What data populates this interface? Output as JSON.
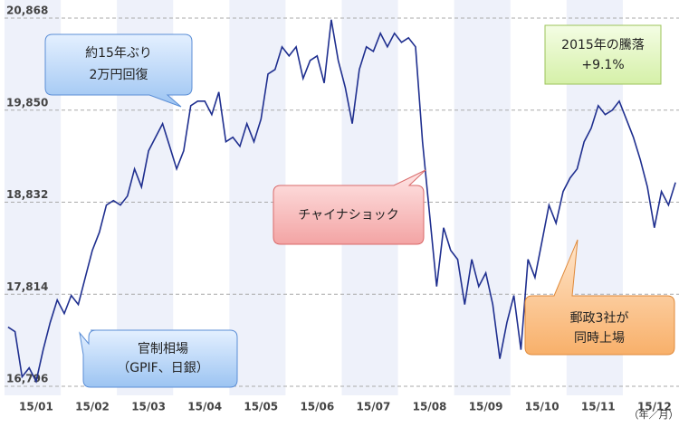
{
  "chart_data": {
    "type": "line",
    "categories": [
      null,
      null,
      null,
      null,
      "15/01",
      null,
      null,
      null,
      null,
      null,
      null,
      null,
      "15/02",
      null,
      null,
      null,
      null,
      null,
      null,
      null,
      "15/03",
      null,
      null,
      null,
      null,
      null,
      null,
      null,
      "15/04",
      null,
      null,
      null,
      null,
      null,
      null,
      null,
      "15/05",
      null,
      null,
      null,
      null,
      null,
      null,
      null,
      "15/06",
      null,
      null,
      null,
      null,
      null,
      null,
      null,
      "15/07",
      null,
      null,
      null,
      null,
      null,
      null,
      null,
      "15/08",
      null,
      null,
      null,
      null,
      null,
      null,
      null,
      "15/09",
      null,
      null,
      null,
      null,
      null,
      null,
      null,
      "15/10",
      null,
      null,
      null,
      null,
      null,
      null,
      null,
      "15/11",
      null,
      null,
      null,
      null,
      null,
      null,
      null,
      "15/12",
      null,
      null,
      null
    ],
    "series": [
      {
        "color": "#1f2f8f",
        "values": [
          17450,
          17400,
          16900,
          17000,
          16850,
          17200,
          17500,
          17750,
          17600,
          17800,
          17700,
          18000,
          18300,
          18500,
          18800,
          18850,
          18800,
          18900,
          19200,
          19000,
          19400,
          19550,
          19700,
          19450,
          19200,
          19400,
          19900,
          19950,
          19950,
          19800,
          20050,
          19500,
          19550,
          19450,
          19700,
          19500,
          19750,
          20250,
          20300,
          20550,
          20450,
          20550,
          20200,
          20400,
          20450,
          20150,
          20850,
          20400,
          20100,
          19700,
          20300,
          20550,
          20500,
          20700,
          20550,
          20700,
          20600,
          20650,
          20550,
          19500,
          18700,
          17900,
          18550,
          18300,
          18200,
          17700,
          18200,
          17900,
          18050,
          17700,
          17100,
          17500,
          17800,
          17200,
          18200,
          18000,
          18400,
          18800,
          18600,
          18950,
          19100,
          19200,
          19500,
          19650,
          19900,
          19800,
          19850,
          19950,
          19750,
          19550,
          19300,
          19000,
          18550,
          18950,
          18800,
          19050
        ]
      }
    ],
    "ylim": [
      16796,
      20868
    ],
    "yticks": [
      {
        "value": 16796,
        "label": "16,796"
      },
      {
        "value": 17814,
        "label": "17,814"
      },
      {
        "value": 18832,
        "label": "18,832"
      },
      {
        "value": 19850,
        "label": "19,850"
      },
      {
        "value": 20868,
        "label": "20,868"
      }
    ],
    "grid": true,
    "x_label": "（年／月）",
    "annotations": [
      {
        "lines": [
          "約15年ぶり",
          "2万円回復"
        ]
      },
      {
        "lines": [
          "官制相場",
          "（GPIF、日銀）"
        ]
      },
      {
        "lines": [
          "チャイナショック"
        ]
      },
      {
        "lines": [
          "2015年の騰落",
          "+9.1%"
        ]
      },
      {
        "lines": [
          "郵政3社が",
          "同時上場"
        ]
      }
    ]
  }
}
